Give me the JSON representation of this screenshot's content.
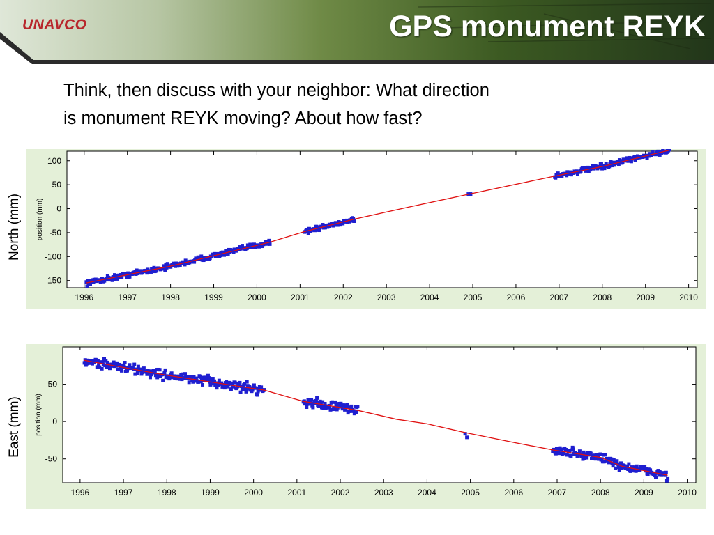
{
  "header": {
    "logo_text": "UNAVCO",
    "title": "GPS monument REYK"
  },
  "prompt": {
    "line1": "Think, then discuss with your neighbor:   What direction",
    "line2": "is monument REYK moving? About how fast?"
  },
  "outer_labels": {
    "north": "North (mm)",
    "east": "East (mm)"
  },
  "colors": {
    "points": "#1f1fd0",
    "trend": "#e01010",
    "panel_bg": "#e4f0d8",
    "logo": "#b8262b"
  },
  "chart_data": [
    {
      "type": "scatter",
      "component": "north",
      "ylabel": "position (mm)",
      "xlim": [
        1995.6,
        2010.2
      ],
      "ylim": [
        -165,
        120
      ],
      "xticks": [
        "1996",
        "1997",
        "1998",
        "1999",
        "2000",
        "2001",
        "2002",
        "2003",
        "2004",
        "2005",
        "2006",
        "2007",
        "2008",
        "2009",
        "2010"
      ],
      "yticks": [
        "100",
        "50",
        "0",
        "-50",
        "-100",
        "-150"
      ],
      "grid": false,
      "series": [
        {
          "kind": "observations",
          "segments": [
            {
              "x": [
                1996.05,
                2000.3
              ],
              "y": [
                -155,
                -70
              ]
            },
            {
              "x": [
                2001.1,
                2002.25
              ],
              "y": [
                -42,
                -22
              ]
            },
            {
              "x": [
                2004.9,
                2004.95
              ],
              "y": [
                30,
                30
              ]
            },
            {
              "x": [
                2006.9,
                2009.55
              ],
              "y": [
                68,
                122
              ]
            }
          ]
        },
        {
          "kind": "trend",
          "x": [
            1996.05,
            1998.0,
            2000.3,
            2001.1,
            2002.25,
            2003.5,
            2004.9,
            2006.9,
            2008.0,
            2009.55
          ],
          "y": [
            -155,
            -120,
            -70,
            -48,
            -22,
            3,
            30,
            68,
            88,
            122
          ]
        }
      ]
    },
    {
      "type": "scatter",
      "component": "east",
      "ylabel": "position (mm)",
      "xlim": [
        1995.6,
        2010.2
      ],
      "ylim": [
        -82,
        100
      ],
      "xticks": [
        "1996",
        "1997",
        "1998",
        "1999",
        "2000",
        "2001",
        "2002",
        "2003",
        "2004",
        "2005",
        "2006",
        "2007",
        "2008",
        "2009",
        "2010"
      ],
      "yticks": [
        "50",
        "0",
        "-50"
      ],
      "grid": false,
      "series": [
        {
          "kind": "observations",
          "segments": [
            {
              "x": [
                1996.1,
                2000.25
              ],
              "y": [
                82,
                42
              ]
            },
            {
              "x": [
                2001.15,
                2002.4
              ],
              "y": [
                27,
                15
              ]
            },
            {
              "x": [
                2004.88,
                2004.92
              ],
              "y": [
                -15,
                -15
              ]
            },
            {
              "x": [
                2006.9,
                2009.55
              ],
              "y": [
                -38,
                -72
              ]
            }
          ]
        },
        {
          "kind": "trend",
          "x": [
            1996.1,
            1998.0,
            2000.25,
            2001.15,
            2002.4,
            2003.3,
            2004.0,
            2004.9,
            2006.0,
            2006.9,
            2008.0,
            2008.5,
            2009.55
          ],
          "y": [
            82,
            62,
            42,
            27,
            15,
            3,
            -3,
            -15,
            -28,
            -38,
            -48,
            -60,
            -72
          ]
        }
      ]
    }
  ]
}
